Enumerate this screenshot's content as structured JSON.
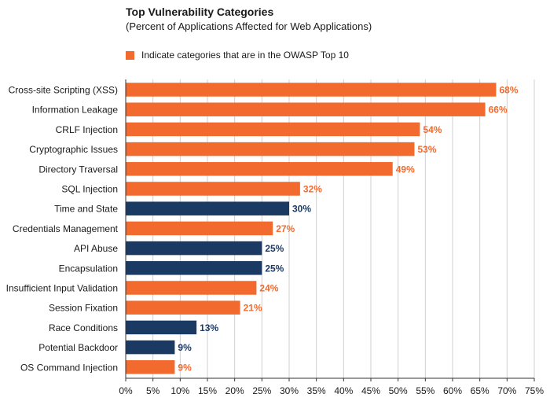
{
  "colors": {
    "owasp": "#f26a2e",
    "other": "#1b3a63",
    "grid": "#cfcfcf",
    "axis": "#333333",
    "text": "#1a1a1a"
  },
  "chart_data": {
    "type": "bar",
    "orientation": "horizontal",
    "title": "Top Vulnerability Categories",
    "subtitle": "(Percent of Applications Affected for Web Applications)",
    "legend": {
      "label": "Indicate categories that are in the OWASP Top 10",
      "color": "#f26a2e",
      "placement": "top-left"
    },
    "xlim": [
      0,
      75
    ],
    "xticks": [
      "0%",
      "5%",
      "10%",
      "15%",
      "20%",
      "25%",
      "30%",
      "35%",
      "40%",
      "45%",
      "50%",
      "55%",
      "60%",
      "65%",
      "70%",
      "75%"
    ],
    "grid": true,
    "bars": [
      {
        "category": "Cross-site Scripting (XSS)",
        "value": 68,
        "label": "68%",
        "owasp": true
      },
      {
        "category": "Information Leakage",
        "value": 66,
        "label": "66%",
        "owasp": true
      },
      {
        "category": "CRLF Injection",
        "value": 54,
        "label": "54%",
        "owasp": true
      },
      {
        "category": "Cryptographic Issues",
        "value": 53,
        "label": "53%",
        "owasp": true
      },
      {
        "category": "Directory Traversal",
        "value": 49,
        "label": "49%",
        "owasp": true
      },
      {
        "category": "SQL Injection",
        "value": 32,
        "label": "32%",
        "owasp": true
      },
      {
        "category": "Time and State",
        "value": 30,
        "label": "30%",
        "owasp": false
      },
      {
        "category": "Credentials Management",
        "value": 27,
        "label": "27%",
        "owasp": true
      },
      {
        "category": "API Abuse",
        "value": 25,
        "label": "25%",
        "owasp": false
      },
      {
        "category": "Encapsulation",
        "value": 25,
        "label": "25%",
        "owasp": false
      },
      {
        "category": "Insufficient Input Validation",
        "value": 24,
        "label": "24%",
        "owasp": true
      },
      {
        "category": "Session Fixation",
        "value": 21,
        "label": "21%",
        "owasp": true
      },
      {
        "category": "Race Conditions",
        "value": 13,
        "label": "13%",
        "owasp": false
      },
      {
        "category": "Potential Backdoor",
        "value": 9,
        "label": "9%",
        "owasp": false
      },
      {
        "category": "OS Command Injection",
        "value": 9,
        "label": "9%",
        "owasp": true
      }
    ]
  }
}
